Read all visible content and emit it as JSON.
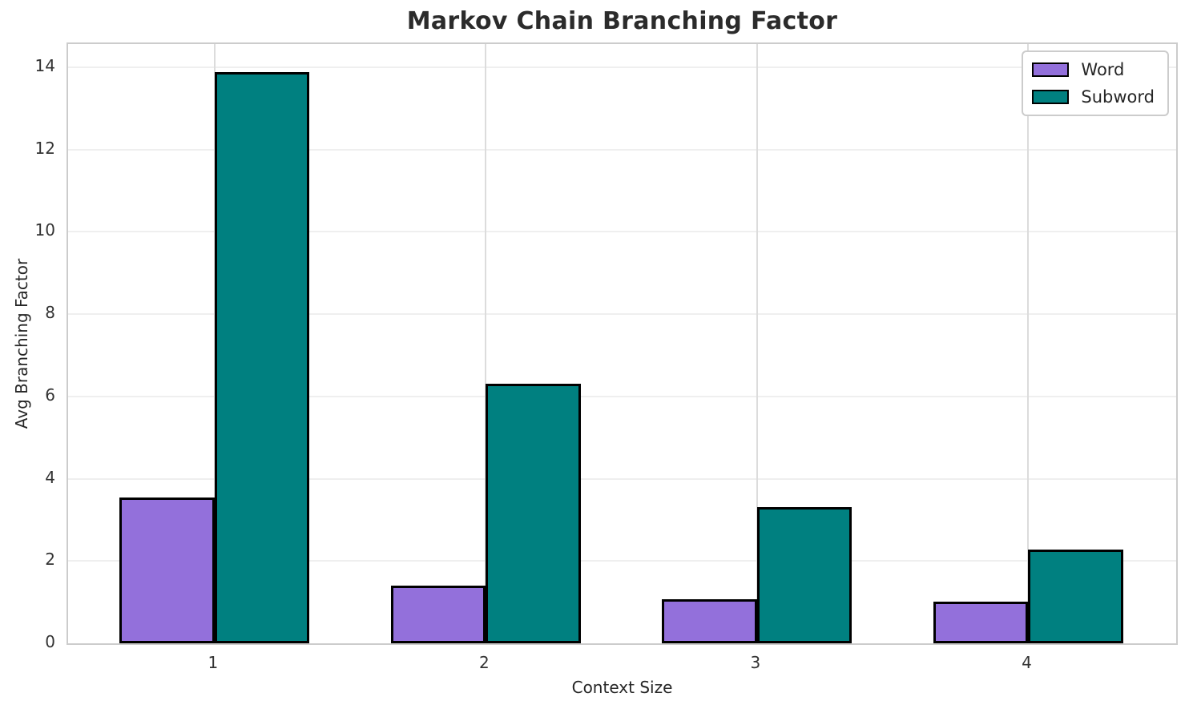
{
  "chart_data": {
    "type": "bar",
    "title": "Markov Chain Branching Factor",
    "xlabel": "Context Size",
    "ylabel": "Avg Branching Factor",
    "categories": [
      "1",
      "2",
      "3",
      "4"
    ],
    "series": [
      {
        "name": "Word",
        "color": "#9370DB",
        "values": [
          3.55,
          1.4,
          1.07,
          1.02
        ]
      },
      {
        "name": "Subword",
        "color": "#008080",
        "values": [
          13.87,
          6.3,
          3.3,
          2.27
        ]
      }
    ],
    "yticks": [
      0,
      2,
      4,
      6,
      8,
      10,
      12,
      14
    ],
    "ylim": [
      0,
      14.56
    ],
    "xlim": [
      -0.54,
      3.545
    ],
    "bar_width": 0.35,
    "bar_edge_color": "#000000",
    "grid": true,
    "legend_position": "upper right",
    "background_color": "#ffffff",
    "text_color": "#262626"
  }
}
